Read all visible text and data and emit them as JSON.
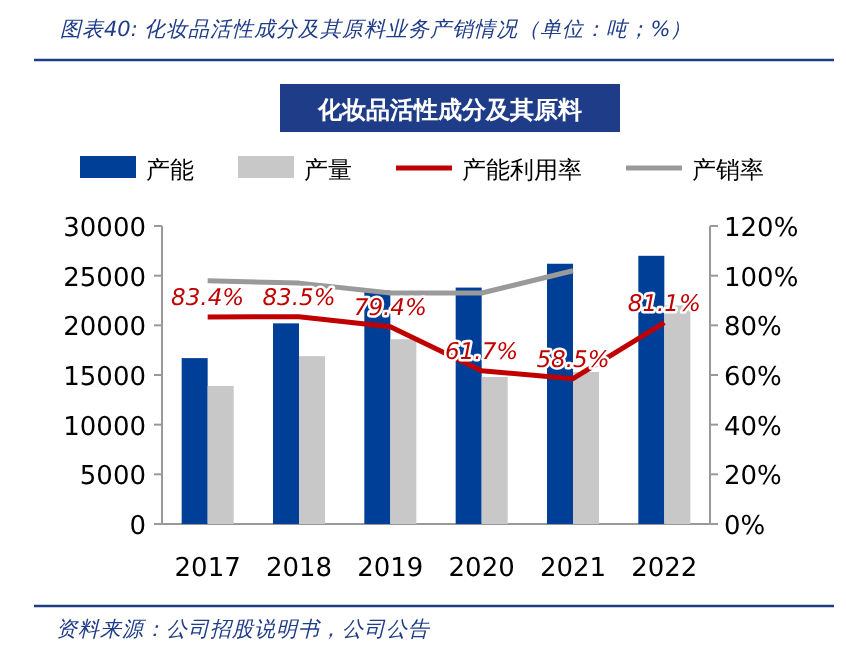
{
  "chart_data": {
    "type": "bar",
    "title": "图表40: 化妆品活性成分及其原料业务产销情况（单位：吨；%）",
    "subtitle": "化妆品活性成分及其原料",
    "annotations": [
      "资料来源：公司招股说明书，公司公告"
    ],
    "categories": [
      "2017",
      "2018",
      "2019",
      "2020",
      "2021",
      "2022"
    ],
    "series": [
      {
        "name": "产能",
        "color": "#003f98",
        "values": [
          16700,
          20200,
          23500,
          23800,
          26200,
          27000
        ]
      },
      {
        "name": "产量",
        "color": "#c8c8c8",
        "values": [
          13900,
          16900,
          18600,
          14800,
          15300,
          22000
        ]
      },
      {
        "name": "产能利用率",
        "type": "line",
        "axis": "y2",
        "color": "#c00000",
        "values": [
          83.4,
          83.5,
          79.4,
          61.7,
          58.5,
          81.1
        ],
        "value_labels": [
          "83.4%",
          "83.5%",
          "79.4%",
          "61.7%",
          "58.5%",
          "81.1%"
        ]
      },
      {
        "name": "产销率",
        "type": "line",
        "axis": "y2",
        "color": "#9a9a9a",
        "values": [
          98,
          97,
          93,
          93,
          102,
          null
        ]
      }
    ],
    "ylim": [
      0,
      30000
    ],
    "yticks": [
      0,
      5000,
      10000,
      15000,
      20000,
      25000,
      30000
    ],
    "y2lim": [
      0,
      120
    ],
    "y2ticks": [
      {
        "value": 0,
        "label": "0%"
      },
      {
        "value": 20,
        "label": "20%"
      },
      {
        "value": 40,
        "label": "40%"
      },
      {
        "value": 60,
        "label": "60%"
      },
      {
        "value": 80,
        "label": "80%"
      },
      {
        "value": 100,
        "label": "100%"
      },
      {
        "value": 120,
        "label": "120%"
      }
    ],
    "legend": "top",
    "grid": false
  }
}
